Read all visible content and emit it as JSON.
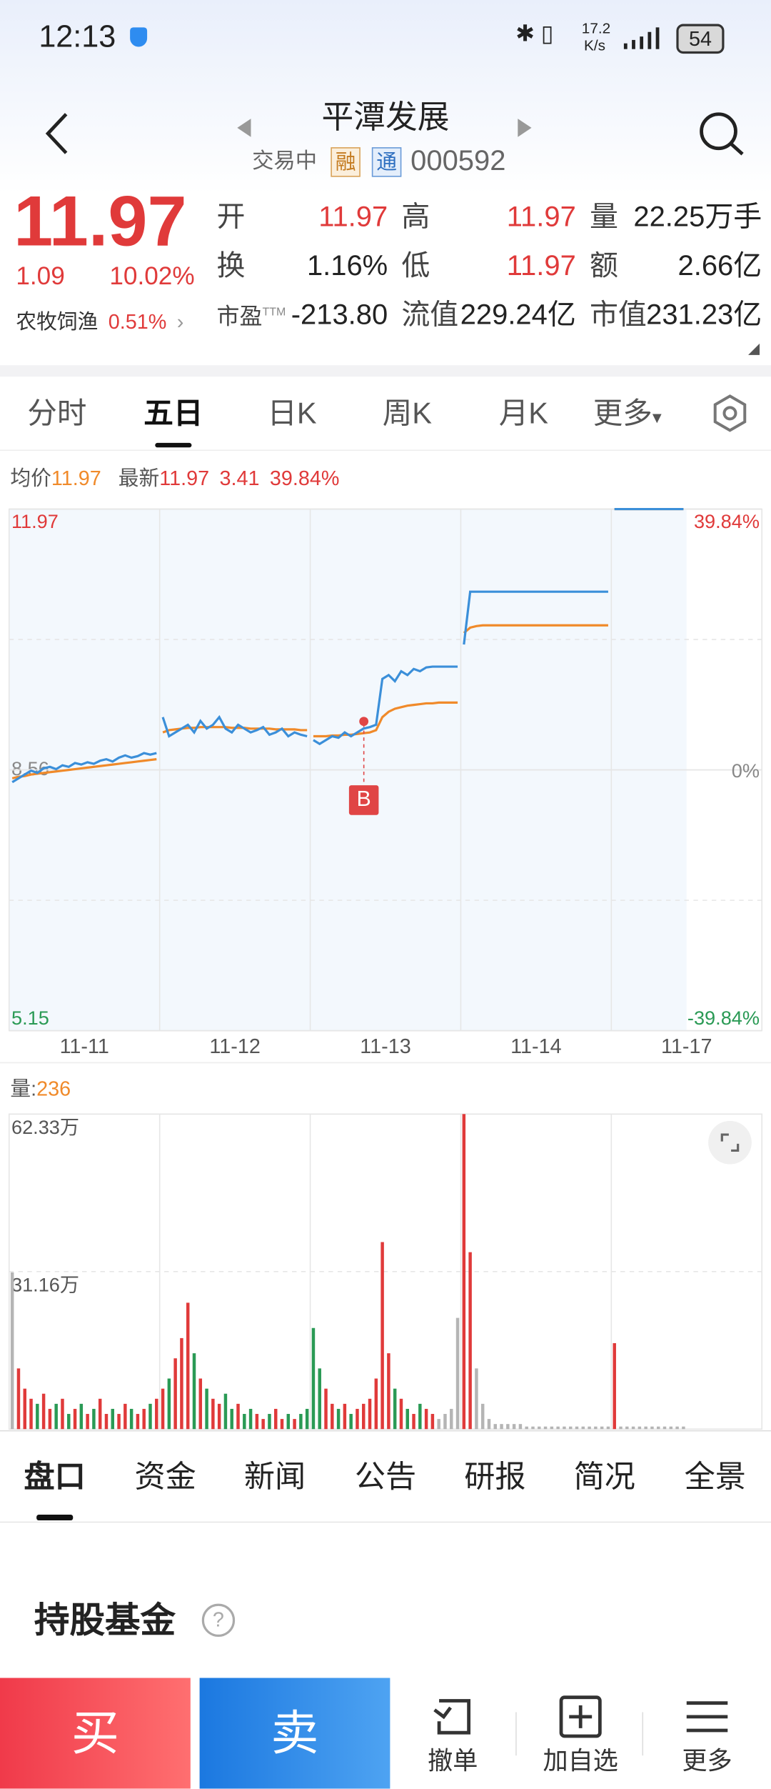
{
  "status_bar": {
    "time": "12:13",
    "net_speed": [
      "17.2",
      "K/s"
    ],
    "battery": "54"
  },
  "header": {
    "title": "平潭发展",
    "trade_status": "交易中",
    "badges": [
      "融",
      "通"
    ],
    "code": "000592"
  },
  "quote": {
    "price": "11.97",
    "change": "1.09",
    "change_pct": "10.02%",
    "sector": "农牧饲渔",
    "sector_pct": "0.51%"
  },
  "fields": [
    {
      "label": "开",
      "value": "11.97",
      "color": "#e03a3a"
    },
    {
      "label": "高",
      "value": "11.97",
      "color": "#e03a3a"
    },
    {
      "label": "量",
      "value": "22.25万手",
      "color": "#222222"
    },
    {
      "label": "换",
      "value": "1.16%",
      "color": "#222222"
    },
    {
      "label": "低",
      "value": "11.97",
      "color": "#e03a3a"
    },
    {
      "label": "额",
      "value": "2.66亿",
      "color": "#222222"
    },
    {
      "label": "市盈",
      "sup": "TTM",
      "value": "-213.80",
      "color": "#222222"
    },
    {
      "label": "流值",
      "value": "229.24亿",
      "color": "#222222"
    },
    {
      "label": "市值",
      "value": "231.23亿",
      "color": "#222222"
    }
  ],
  "tabs": [
    {
      "label": "分时"
    },
    {
      "label": "五日",
      "active": true
    },
    {
      "label": "日K"
    },
    {
      "label": "周K"
    },
    {
      "label": "月K"
    },
    {
      "label": "更多"
    }
  ],
  "chart_info": {
    "latest": "11.97",
    "change": "3.41",
    "change_pct": "39.84%",
    "avg": "11.97"
  },
  "chart_data": [
    {
      "type": "line",
      "categories": [
        "11-11",
        "11-12",
        "11-13",
        "11-14",
        "11-17"
      ],
      "series": [
        {
          "name": "最新",
          "color": "#3b8fd9",
          "values": [
            [
              8.4,
              8.45,
              8.5,
              8.55,
              8.52,
              8.58,
              8.6,
              8.57,
              8.62,
              8.6,
              8.65,
              8.63,
              8.66,
              8.64,
              8.68,
              8.7,
              8.67,
              8.72,
              8.75,
              8.72,
              8.74,
              8.78,
              8.76,
              8.78
            ],
            [
              9.25,
              9.0,
              9.05,
              9.1,
              9.15,
              9.05,
              9.2,
              9.1,
              9.15,
              9.25,
              9.1,
              9.05,
              9.15,
              9.1,
              9.05,
              9.08,
              9.12,
              9.02,
              9.05,
              9.1,
              9.0,
              9.05,
              9.02,
              9.0
            ],
            [
              8.95,
              8.9,
              8.95,
              9.0,
              8.98,
              9.05,
              9.0,
              9.05,
              9.1,
              9.12,
              9.15,
              9.75,
              9.8,
              9.72,
              9.85,
              9.8,
              9.88,
              9.85,
              9.9,
              9.91,
              9.91,
              9.91,
              9.91,
              9.91
            ],
            [
              10.2,
              10.89,
              10.89,
              10.89,
              10.89,
              10.89,
              10.89,
              10.89,
              10.89,
              10.89,
              10.89,
              10.89,
              10.89,
              10.89,
              10.89,
              10.89,
              10.89,
              10.89,
              10.89,
              10.89,
              10.89,
              10.89,
              10.89,
              10.89
            ],
            [
              11.97,
              11.97,
              11.97,
              11.97,
              11.97,
              11.97,
              11.97,
              11.97,
              11.97,
              11.97,
              11.97,
              11.97
            ]
          ]
        },
        {
          "name": "均价",
          "color": "#f08a2a",
          "values": [
            [
              8.45,
              8.47,
              8.48,
              8.5,
              8.51,
              8.52,
              8.53,
              8.54,
              8.55,
              8.56,
              8.57,
              8.58,
              8.59,
              8.6,
              8.61,
              8.62,
              8.63,
              8.64,
              8.65,
              8.66,
              8.67,
              8.68,
              8.69,
              8.7
            ],
            [
              9.05,
              9.08,
              9.09,
              9.1,
              9.11,
              9.11,
              9.12,
              9.12,
              9.12,
              9.12,
              9.12,
              9.11,
              9.11,
              9.11,
              9.1,
              9.1,
              9.1,
              9.1,
              9.09,
              9.09,
              9.09,
              9.09,
              9.08,
              9.08
            ],
            [
              9.0,
              9.0,
              9.0,
              9.01,
              9.01,
              9.02,
              9.02,
              9.03,
              9.04,
              9.05,
              9.08,
              9.25,
              9.32,
              9.36,
              9.38,
              9.4,
              9.41,
              9.42,
              9.43,
              9.43,
              9.44,
              9.44,
              9.44,
              9.44
            ],
            [
              10.35,
              10.42,
              10.44,
              10.45,
              10.45,
              10.45,
              10.45,
              10.45,
              10.45,
              10.45,
              10.45,
              10.45,
              10.45,
              10.45,
              10.45,
              10.45,
              10.45,
              10.45,
              10.45,
              10.45,
              10.45,
              10.45,
              10.45,
              10.45
            ],
            [
              11.97,
              11.97,
              11.97,
              11.97,
              11.97,
              11.97,
              11.97,
              11.97,
              11.97,
              11.97,
              11.97,
              11.97
            ]
          ]
        }
      ],
      "ylim": [
        5.15,
        11.97
      ],
      "yticks": [
        11.97,
        8.56,
        5.15
      ],
      "y2lim": [
        -39.84,
        39.84
      ],
      "y2ticks": [
        {
          "value": 39.84,
          "label": "39.84%"
        },
        {
          "value": 0,
          "label": "0%"
        },
        {
          "value": -39.84,
          "label": "-39.84%"
        }
      ],
      "annotation": "B"
    },
    {
      "type": "bar",
      "title": "量:",
      "current": "236",
      "values": [
        [
          31,
          12,
          8,
          6,
          5,
          7,
          4,
          5,
          6,
          3,
          4,
          5,
          3,
          4,
          6,
          3,
          4,
          3,
          5,
          4,
          3,
          4,
          5,
          6
        ],
        [
          8,
          10,
          14,
          18,
          25,
          15,
          10,
          8,
          6,
          5,
          7,
          4,
          5,
          3,
          4,
          3,
          2,
          3,
          4,
          2,
          3,
          2,
          3,
          4
        ],
        [
          20,
          12,
          8,
          5,
          4,
          5,
          3,
          4,
          5,
          6,
          10,
          37,
          15,
          8,
          6,
          4,
          3,
          5,
          4,
          3,
          2,
          3,
          4,
          22
        ],
        [
          62.33,
          35,
          12,
          5,
          2,
          1,
          1,
          1,
          1,
          1,
          0.5,
          0.5,
          0.5,
          0.5,
          0.5,
          0.5,
          0.5,
          0.5,
          0.5,
          0.5,
          0.5,
          0.5,
          0.5,
          0.5
        ],
        [
          17,
          0.5,
          0.5,
          0.5,
          0.5,
          0.5,
          0.5,
          0.5,
          0.5,
          0.5,
          0.5,
          0.5
        ]
      ],
      "colors": {
        "up": "#e03a3a",
        "down": "#2a9a55",
        "flat": "#b5b5b5"
      },
      "ylim": [
        0,
        62.33
      ],
      "yticks": [
        {
          "value": 62.33,
          "label": "62.33万"
        },
        {
          "value": 31.16,
          "label": "31.16万"
        }
      ]
    }
  ],
  "detail_tabs": [
    {
      "label": "盘口",
      "active": true
    },
    {
      "label": "资金"
    },
    {
      "label": "新闻"
    },
    {
      "label": "公告"
    },
    {
      "label": "研报"
    },
    {
      "label": "简况"
    },
    {
      "label": "全景"
    }
  ],
  "section_title": "持股基金",
  "actions": {
    "buy": "买",
    "sell": "卖",
    "buttons": [
      "撤单",
      "加自选",
      "更多"
    ]
  }
}
